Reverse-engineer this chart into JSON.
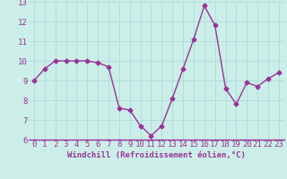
{
  "x": [
    0,
    1,
    2,
    3,
    4,
    5,
    6,
    7,
    8,
    9,
    10,
    11,
    12,
    13,
    14,
    15,
    16,
    17,
    18,
    19,
    20,
    21,
    22,
    23
  ],
  "y": [
    9.0,
    9.6,
    10.0,
    10.0,
    10.0,
    10.0,
    9.9,
    9.7,
    7.6,
    7.5,
    6.7,
    6.2,
    6.7,
    8.1,
    9.6,
    11.1,
    12.8,
    11.8,
    8.6,
    7.8,
    8.9,
    8.7,
    9.1,
    9.4
  ],
  "line_color": "#993399",
  "marker": "D",
  "marker_size": 2.5,
  "xlabel": "Windchill (Refroidissement éolien,°C)",
  "ylabel": "",
  "ylim": [
    6,
    13
  ],
  "xlim": [
    -0.5,
    23.5
  ],
  "yticks": [
    6,
    7,
    8,
    9,
    10,
    11,
    12,
    13
  ],
  "xticks": [
    0,
    1,
    2,
    3,
    4,
    5,
    6,
    7,
    8,
    9,
    10,
    11,
    12,
    13,
    14,
    15,
    16,
    17,
    18,
    19,
    20,
    21,
    22,
    23
  ],
  "bg_color": "#cceee8",
  "grid_color": "#aadddd",
  "tick_label_color": "#993399",
  "xlabel_color": "#993399",
  "xlabel_fontsize": 6.5,
  "tick_fontsize": 6.5,
  "line_width": 1.0,
  "bottom_border_color": "#993399"
}
